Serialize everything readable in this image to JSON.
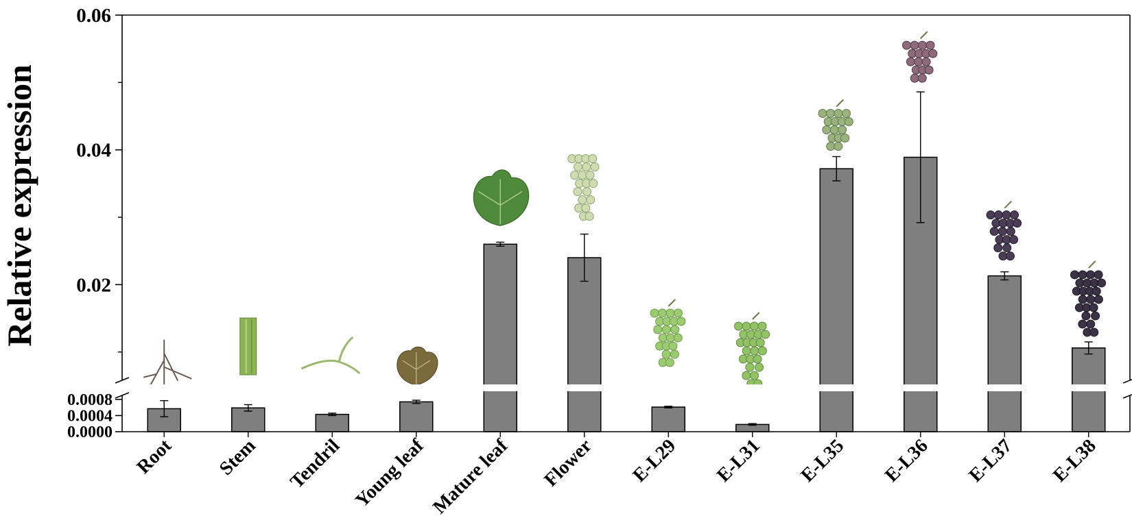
{
  "chart_data": {
    "type": "bar",
    "ylabel": "Relative expression",
    "xlabel": "",
    "title": "",
    "categories": [
      "Root",
      "Stem",
      "Tendril",
      "Young leaf",
      "Mature leaf",
      "Flower",
      "E-L29",
      "E-L31",
      "E-L35",
      "E-L36",
      "E-L37",
      "E-L38"
    ],
    "values": [
      0.00057,
      0.00059,
      0.00043,
      0.00074,
      0.026,
      0.024,
      0.00061,
      0.00018,
      0.0372,
      0.0389,
      0.0213,
      0.0106
    ],
    "errors": [
      0.0002,
      8e-05,
      3e-05,
      4e-05,
      0.0003,
      0.0035,
      2e-05,
      2e-05,
      0.0018,
      0.0097,
      0.0006,
      0.0009
    ],
    "axis_break": true,
    "ylim_lower": [
      0,
      0.0009
    ],
    "ylim_upper": [
      0.0058,
      0.06
    ],
    "yticks_lower": [
      "0.0000",
      "0.0004",
      "0.0008"
    ],
    "yticks_upper": [
      "0.02",
      "0.04",
      "0.06"
    ],
    "bar_color": "#7f7f7f",
    "grid": false,
    "legend": "none",
    "icons": [
      "root-icon",
      "stem-icon",
      "tendril-icon",
      "young-leaf-icon",
      "mature-leaf-icon",
      "flower-icon",
      "grape-cluster-icon",
      "grape-cluster-icon",
      "grape-cluster-icon",
      "grape-cluster-icon",
      "grape-cluster-icon",
      "grape-cluster-icon"
    ]
  }
}
